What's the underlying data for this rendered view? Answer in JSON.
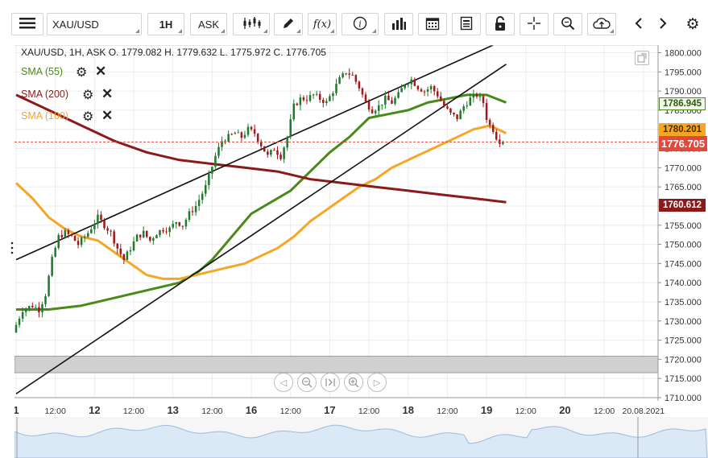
{
  "toolbar": {
    "symbol": "XAU/USD",
    "timeframe": "1H",
    "price_side": "ASK",
    "icons": [
      "menu-icon",
      "candlestick-icon",
      "pencil-icon",
      "function-icon",
      "info-icon",
      "bar-chart-icon",
      "calendar-icon",
      "report-icon",
      "lock-icon",
      "crosshair-icon",
      "zoom-icon",
      "cloud-upload-icon",
      "chevron-left-icon",
      "chevron-right-icon",
      "gear-icon"
    ]
  },
  "header": {
    "ohlc": "XAU/USD, 1H, ASK    O. 1779.082 H. 1779.632 L. 1775.972 C. 1776.705"
  },
  "indicators": [
    {
      "label": "SMA (55)",
      "color": "#4a8a1a"
    },
    {
      "label": "SMA (200)",
      "color": "#8b1a1a"
    },
    {
      "label": "SMA (100)",
      "color": "#f5a623"
    }
  ],
  "price_tags": {
    "sma55": "1786.945",
    "sma100_overlap": "1780.201",
    "current": "1776.705",
    "sma200": "1760.612"
  },
  "colors": {
    "up": "#1f7a2b",
    "down": "#a01818",
    "sma55": "#4a8a1a",
    "sma100": "#f5a623",
    "sma200": "#8b1a1a",
    "current": "#e04a3a",
    "shade": "#d0d0d0"
  },
  "nav_buttons": [
    "arrow-left-icon",
    "zoom-out-icon",
    "reset-icon",
    "zoom-in-icon",
    "arrow-right-icon"
  ],
  "chart_data": {
    "type": "candlestick",
    "title": "",
    "symbol": "XAU/USD",
    "timeframe": "1H",
    "ylim": [
      1710,
      1802
    ],
    "y_ticks": [
      "1800.000",
      "1795.000",
      "1790.000",
      "1785.000",
      "1780.000",
      "1775.000",
      "1770.000",
      "1765.000",
      "1760.000",
      "1755.000",
      "1750.000",
      "1745.000",
      "1740.000",
      "1735.000",
      "1730.000",
      "1725.000",
      "1720.000",
      "1715.000",
      "1710.000"
    ],
    "x_ticks": [
      {
        "label": "1",
        "bold": true,
        "t": 0
      },
      {
        "label": "12:00",
        "bold": false,
        "t": 12
      },
      {
        "label": "12",
        "bold": true,
        "t": 24
      },
      {
        "label": "12:00",
        "bold": false,
        "t": 36
      },
      {
        "label": "13",
        "bold": true,
        "t": 48
      },
      {
        "label": "12:00",
        "bold": false,
        "t": 60
      },
      {
        "label": "16",
        "bold": true,
        "t": 72
      },
      {
        "label": "12:00",
        "bold": false,
        "t": 84
      },
      {
        "label": "17",
        "bold": true,
        "t": 96
      },
      {
        "label": "12:00",
        "bold": false,
        "t": 108
      },
      {
        "label": "18",
        "bold": true,
        "t": 120
      },
      {
        "label": "12:00",
        "bold": false,
        "t": 132
      },
      {
        "label": "19",
        "bold": true,
        "t": 144
      },
      {
        "label": "12:00",
        "bold": false,
        "t": 156
      },
      {
        "label": "20",
        "bold": true,
        "t": 168
      },
      {
        "label": "12:00",
        "bold": false,
        "t": 180
      },
      {
        "label": "20.08.2021",
        "bold": false,
        "t": 192
      }
    ],
    "candle_keypoints": [
      [
        0,
        1727
      ],
      [
        3,
        1733
      ],
      [
        6,
        1734
      ],
      [
        8,
        1733
      ],
      [
        10,
        1737
      ],
      [
        12,
        1746
      ],
      [
        14,
        1752
      ],
      [
        16,
        1753
      ],
      [
        18,
        1752
      ],
      [
        20,
        1750
      ],
      [
        23,
        1753
      ],
      [
        26,
        1757
      ],
      [
        28,
        1755
      ],
      [
        30,
        1753
      ],
      [
        32,
        1749
      ],
      [
        34,
        1746
      ],
      [
        36,
        1749
      ],
      [
        38,
        1752
      ],
      [
        40,
        1753
      ],
      [
        42,
        1751
      ],
      [
        44,
        1753
      ],
      [
        46,
        1754
      ],
      [
        48,
        1754
      ],
      [
        50,
        1756
      ],
      [
        52,
        1755
      ],
      [
        54,
        1758
      ],
      [
        56,
        1760
      ],
      [
        59,
        1765
      ],
      [
        62,
        1773
      ],
      [
        64,
        1777
      ],
      [
        66,
        1778
      ],
      [
        68,
        1779
      ],
      [
        70,
        1778
      ],
      [
        72,
        1780
      ],
      [
        74,
        1779
      ],
      [
        76,
        1776
      ],
      [
        78,
        1773
      ],
      [
        80,
        1775
      ],
      [
        82,
        1773
      ],
      [
        84,
        1778
      ],
      [
        86,
        1786
      ],
      [
        88,
        1788
      ],
      [
        90,
        1788
      ],
      [
        92,
        1789
      ],
      [
        94,
        1788
      ],
      [
        96,
        1787
      ],
      [
        98,
        1790
      ],
      [
        100,
        1793
      ],
      [
        102,
        1795
      ],
      [
        104,
        1794
      ],
      [
        106,
        1791
      ],
      [
        108,
        1787
      ],
      [
        110,
        1785
      ],
      [
        112,
        1786
      ],
      [
        114,
        1788
      ],
      [
        116,
        1787
      ],
      [
        118,
        1789
      ],
      [
        120,
        1792
      ],
      [
        122,
        1793
      ],
      [
        124,
        1791
      ],
      [
        126,
        1790
      ],
      [
        128,
        1791
      ],
      [
        130,
        1789
      ],
      [
        132,
        1786
      ],
      [
        134,
        1784
      ],
      [
        136,
        1783
      ],
      [
        138,
        1786
      ],
      [
        140,
        1788
      ],
      [
        142,
        1789
      ],
      [
        144,
        1787
      ],
      [
        145,
        1783
      ],
      [
        146,
        1781
      ],
      [
        147,
        1780
      ],
      [
        148,
        1778
      ],
      [
        149,
        1777
      ]
    ],
    "series": [
      {
        "name": "SMA (55)",
        "points": [
          [
            0,
            1733
          ],
          [
            10,
            1733
          ],
          [
            20,
            1734
          ],
          [
            30,
            1736
          ],
          [
            40,
            1738
          ],
          [
            50,
            1740
          ],
          [
            56,
            1743
          ],
          [
            60,
            1746
          ],
          [
            64,
            1750
          ],
          [
            68,
            1754
          ],
          [
            72,
            1758
          ],
          [
            78,
            1761
          ],
          [
            84,
            1764
          ],
          [
            90,
            1769
          ],
          [
            96,
            1774
          ],
          [
            102,
            1778
          ],
          [
            108,
            1783
          ],
          [
            114,
            1784
          ],
          [
            120,
            1785
          ],
          [
            126,
            1787
          ],
          [
            132,
            1788
          ],
          [
            138,
            1789
          ],
          [
            144,
            1789
          ],
          [
            150,
            1787
          ]
        ]
      },
      {
        "name": "SMA (100)",
        "points": [
          [
            0,
            1766
          ],
          [
            5,
            1762
          ],
          [
            10,
            1757
          ],
          [
            15,
            1754
          ],
          [
            20,
            1752
          ],
          [
            25,
            1751
          ],
          [
            30,
            1748
          ],
          [
            35,
            1745
          ],
          [
            40,
            1742
          ],
          [
            45,
            1741
          ],
          [
            50,
            1741
          ],
          [
            55,
            1742
          ],
          [
            60,
            1743
          ],
          [
            65,
            1744
          ],
          [
            70,
            1745
          ],
          [
            75,
            1747
          ],
          [
            80,
            1749
          ],
          [
            85,
            1752
          ],
          [
            90,
            1756
          ],
          [
            95,
            1759
          ],
          [
            100,
            1762
          ],
          [
            105,
            1765
          ],
          [
            110,
            1767
          ],
          [
            115,
            1770
          ],
          [
            120,
            1772
          ],
          [
            125,
            1774
          ],
          [
            130,
            1776
          ],
          [
            135,
            1778
          ],
          [
            140,
            1780
          ],
          [
            145,
            1781
          ],
          [
            150,
            1779
          ]
        ]
      },
      {
        "name": "SMA (200)",
        "points": [
          [
            0,
            1789
          ],
          [
            10,
            1785
          ],
          [
            20,
            1781
          ],
          [
            30,
            1777
          ],
          [
            40,
            1774
          ],
          [
            50,
            1772
          ],
          [
            60,
            1771
          ],
          [
            70,
            1770
          ],
          [
            80,
            1769
          ],
          [
            90,
            1767
          ],
          [
            100,
            1766
          ],
          [
            110,
            1765
          ],
          [
            120,
            1764
          ],
          [
            130,
            1763
          ],
          [
            140,
            1762
          ],
          [
            150,
            1761
          ]
        ]
      }
    ],
    "channel_lines": [
      {
        "from": [
          0,
          1746
        ],
        "to": [
          146,
          1802
        ]
      },
      {
        "from": [
          0,
          1711
        ],
        "to": [
          150,
          1797
        ]
      }
    ],
    "current_price": 1776.705,
    "shaded_band": [
      1716.5,
      1720.8
    ],
    "grid": true
  }
}
